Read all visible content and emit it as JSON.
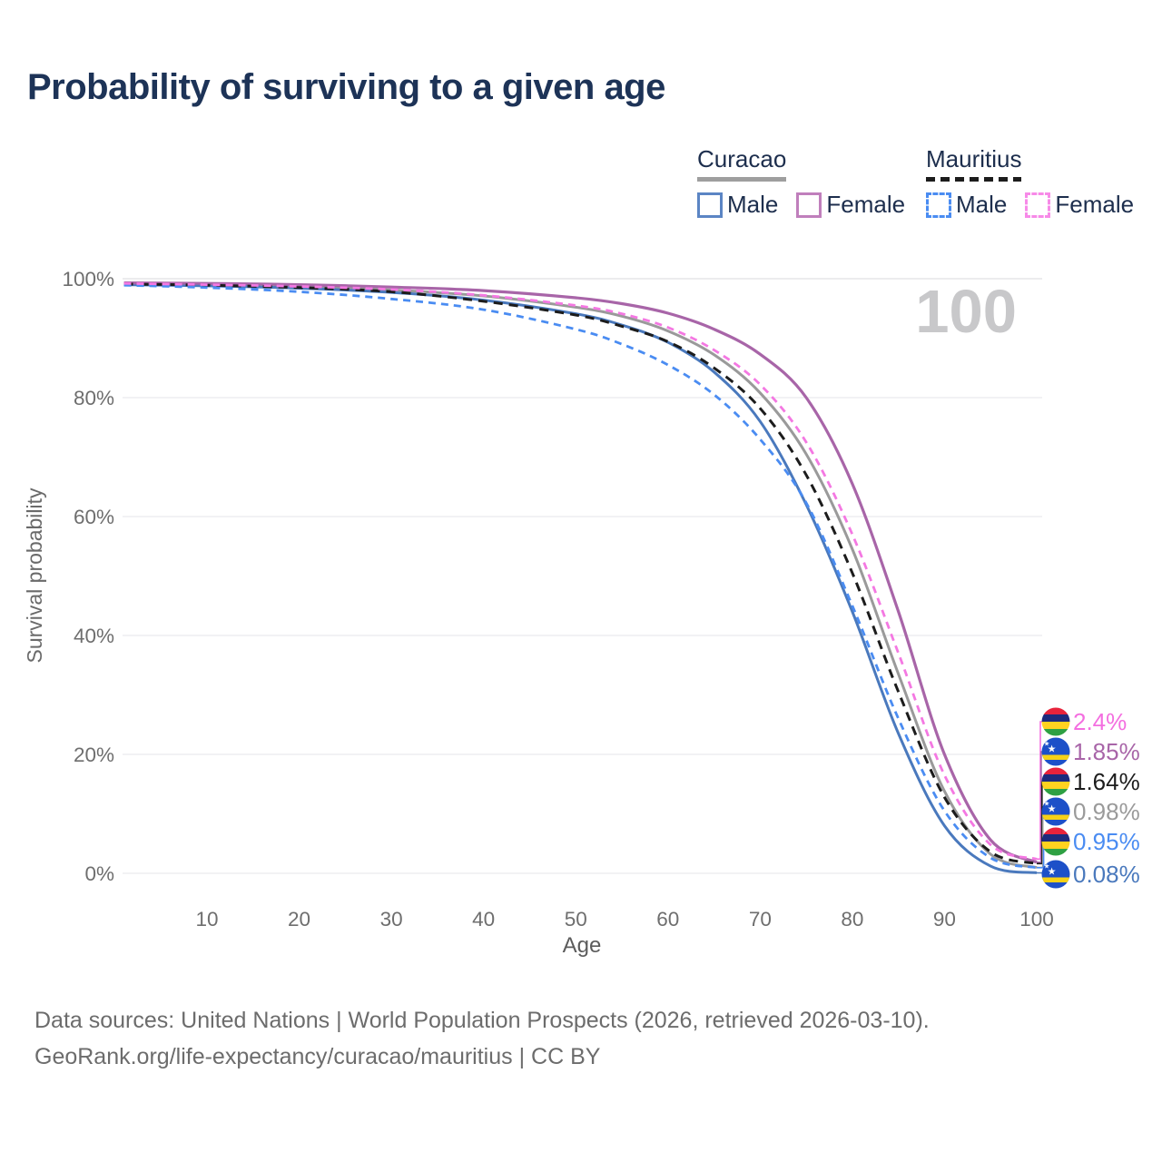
{
  "page": {
    "title": "Probability of surviving to a given age"
  },
  "legend": {
    "groups": [
      {
        "name": "Curacao",
        "line_style": "solid",
        "line_color": "#9a9a9a",
        "items": [
          {
            "label": "Male",
            "swatch_color": "#5b85c4",
            "swatch_style": "solid"
          },
          {
            "label": "Female",
            "swatch_color": "#c07fbc",
            "swatch_style": "solid"
          }
        ]
      },
      {
        "name": "Mauritius",
        "line_style": "dashed",
        "line_color": "#1c1c1c",
        "items": [
          {
            "label": "Male",
            "swatch_color": "#4a8cf2",
            "swatch_style": "dashed"
          },
          {
            "label": "Female",
            "swatch_color": "#f78ae8",
            "swatch_style": "dashed"
          }
        ]
      }
    ]
  },
  "chart_data": {
    "type": "line",
    "title": "Probability of surviving to a given age",
    "xlabel": "Age",
    "ylabel": "Survival probability",
    "xlim": [
      1,
      100
    ],
    "ylim": [
      0,
      100
    ],
    "grid": "horizontal",
    "legend_position": "top-right",
    "watermark": "100",
    "x_ticks": [
      10,
      20,
      30,
      40,
      50,
      60,
      70,
      80,
      90,
      100
    ],
    "y_ticks": [
      {
        "value": 100,
        "label": "100%"
      },
      {
        "value": 80,
        "label": "80%"
      },
      {
        "value": 60,
        "label": "60%"
      },
      {
        "value": 40,
        "label": "40%"
      },
      {
        "value": 20,
        "label": "20%"
      },
      {
        "value": 0,
        "label": "0%"
      }
    ],
    "ages": [
      1,
      10,
      20,
      30,
      40,
      50,
      55,
      60,
      65,
      70,
      75,
      80,
      85,
      90,
      95,
      100
    ],
    "series": [
      {
        "id": "curacao-both",
        "country": "Curacao",
        "sex": "Both sexes",
        "color": "#9a9a9a",
        "dash": false,
        "width": 3,
        "end_value": 0.98,
        "end_label": "0.98%",
        "values": [
          99.2,
          99.0,
          98.7,
          98.1,
          97.1,
          95.2,
          93.7,
          91.2,
          87.2,
          80.8,
          70.5,
          54.5,
          33.5,
          13.8,
          3.2,
          0.98
        ]
      },
      {
        "id": "curacao-male",
        "country": "Curacao",
        "sex": "Male",
        "color": "#4a79bd",
        "dash": false,
        "width": 3,
        "end_value": 0.08,
        "end_label": "0.08%",
        "values": [
          99.0,
          98.8,
          98.4,
          97.7,
          96.4,
          94.1,
          92.2,
          89.3,
          84.3,
          76.0,
          62.0,
          44.0,
          23.5,
          8.0,
          1.2,
          0.08
        ]
      },
      {
        "id": "curacao-female",
        "country": "Curacao",
        "sex": "Female",
        "color": "#a865a8",
        "dash": false,
        "width": 3.2,
        "end_value": 1.85,
        "end_label": "1.85%",
        "values": [
          99.3,
          99.2,
          99.0,
          98.6,
          98.0,
          96.8,
          95.8,
          94.2,
          91.5,
          87.3,
          80.0,
          65.5,
          44.0,
          20.0,
          5.6,
          1.85
        ]
      },
      {
        "id": "mauritius-both",
        "country": "Mauritius",
        "sex": "Both sexes",
        "color": "#1c1c1c",
        "dash": true,
        "width": 3,
        "end_value": 1.64,
        "end_label": "1.64%",
        "values": [
          99.1,
          98.9,
          98.5,
          97.8,
          96.2,
          93.9,
          92.0,
          89.4,
          85.0,
          78.2,
          67.0,
          50.5,
          30.5,
          12.8,
          3.6,
          1.64
        ]
      },
      {
        "id": "mauritius-male",
        "country": "Mauritius",
        "sex": "Male",
        "color": "#4a8cf2",
        "dash": true,
        "width": 2.8,
        "end_value": 0.95,
        "end_label": "0.95%",
        "values": [
          98.9,
          98.5,
          97.8,
          96.6,
          94.8,
          91.5,
          89.0,
          85.5,
          80.5,
          73.0,
          62.3,
          45.0,
          26.0,
          10.5,
          2.6,
          0.95
        ]
      },
      {
        "id": "mauritius-female",
        "country": "Mauritius",
        "sex": "Female",
        "color": "#f478e2",
        "dash": true,
        "width": 2.8,
        "end_value": 2.4,
        "end_label": "2.4%",
        "values": [
          99.2,
          99.0,
          98.7,
          98.2,
          97.2,
          95.5,
          94.1,
          91.8,
          88.0,
          82.2,
          72.5,
          57.0,
          37.0,
          16.5,
          4.8,
          2.4
        ]
      }
    ],
    "end_labels": [
      {
        "series_id": "mauritius-female",
        "label": "2.4%",
        "color": "#f46fe0",
        "flag": "mauritius"
      },
      {
        "series_id": "curacao-female",
        "label": "1.85%",
        "color": "#a865a8",
        "flag": "curacao"
      },
      {
        "series_id": "mauritius-both",
        "label": "1.64%",
        "color": "#1c1c1c",
        "flag": "mauritius"
      },
      {
        "series_id": "curacao-both",
        "label": "0.98%",
        "color": "#9a9a9a",
        "flag": "curacao"
      },
      {
        "series_id": "mauritius-male",
        "label": "0.95%",
        "color": "#4a8cf2",
        "flag": "mauritius"
      },
      {
        "series_id": "curacao-male",
        "label": "0.08%",
        "color": "#4a79bd",
        "flag": "curacao"
      }
    ],
    "flag_colors": {
      "mauritius": {
        "red": "#e8233b",
        "blue": "#1d2b7d",
        "yellow": "#ffd220",
        "green": "#2ea043"
      },
      "curacao": {
        "field": "#1d50c8",
        "stripe": "#f7d117",
        "star": "#ffffff"
      }
    }
  },
  "footer": {
    "line1": "Data sources: United Nations | World Population Prospects (2026, retrieved 2026-03-10).",
    "line2": "GeoRank.org/life-expectancy/curacao/mauritius | CC BY"
  }
}
